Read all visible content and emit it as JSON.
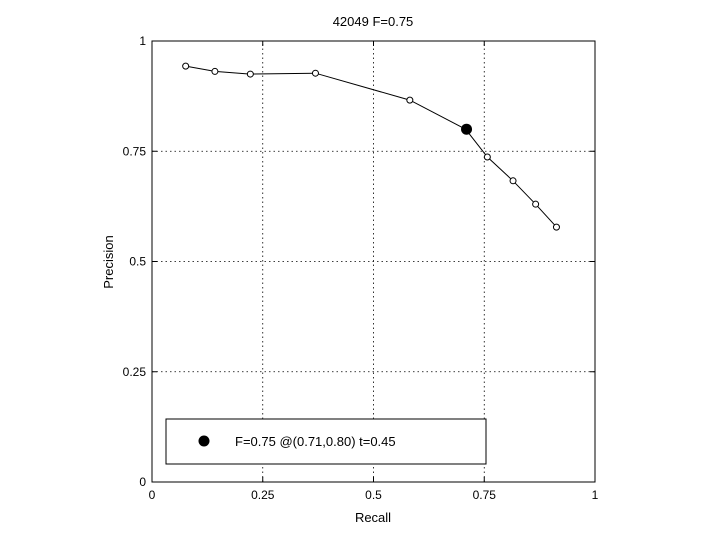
{
  "chart_data": {
    "type": "line",
    "title": "42049 F=0.75",
    "xlabel": "Recall",
    "ylabel": "Precision",
    "xlim": [
      0,
      1
    ],
    "ylim": [
      0,
      1
    ],
    "grid": true,
    "x_ticks": [
      {
        "value": 0,
        "label": "0"
      },
      {
        "value": 0.25,
        "label": "0.25"
      },
      {
        "value": 0.5,
        "label": "0.5"
      },
      {
        "value": 0.75,
        "label": "0.75"
      },
      {
        "value": 1,
        "label": "1"
      }
    ],
    "y_ticks": [
      {
        "value": 0,
        "label": "0"
      },
      {
        "value": 0.25,
        "label": "0.25"
      },
      {
        "value": 0.5,
        "label": "0.5"
      },
      {
        "value": 0.75,
        "label": "0.75"
      },
      {
        "value": 1,
        "label": "1"
      }
    ],
    "series": [
      {
        "color": "#000000",
        "marker": "open-circle",
        "points": [
          {
            "x": 0.076,
            "y": 0.943
          },
          {
            "x": 0.142,
            "y": 0.931
          },
          {
            "x": 0.222,
            "y": 0.925
          },
          {
            "x": 0.369,
            "y": 0.927
          },
          {
            "x": 0.582,
            "y": 0.866
          },
          {
            "x": 0.708,
            "y": 0.8
          },
          {
            "x": 0.757,
            "y": 0.737
          },
          {
            "x": 0.815,
            "y": 0.683
          },
          {
            "x": 0.866,
            "y": 0.63
          },
          {
            "x": 0.913,
            "y": 0.578
          }
        ]
      }
    ],
    "highlight": {
      "x": 0.71,
      "y": 0.8,
      "marker": "filled-circle",
      "color": "#000000"
    },
    "legend": {
      "position": "bottom-left",
      "label": "F=0.75 @(0.71,0.80) t=0.45",
      "marker": "filled-circle"
    }
  }
}
